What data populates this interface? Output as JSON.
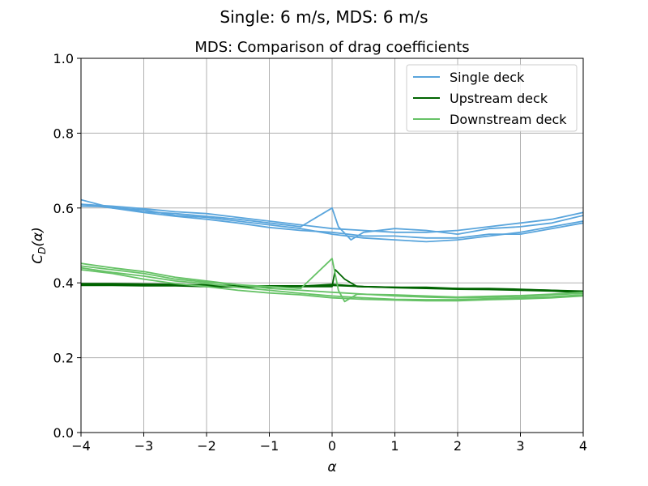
{
  "figure": {
    "suptitle": "Single: 6 m/s, MDS: 6 m/s"
  },
  "chart_data": {
    "type": "line",
    "title": "MDS: Comparison of drag coefficients",
    "xlabel": "α",
    "ylabel_main": "C",
    "ylabel_sub": "D",
    "ylabel_tail": "(α)",
    "xlim": [
      -4,
      4
    ],
    "ylim": [
      0,
      1
    ],
    "x_ticks": [
      -4,
      -3,
      -2,
      -1,
      0,
      1,
      2,
      3,
      4
    ],
    "y_ticks": [
      0.0,
      0.2,
      0.4,
      0.6,
      0.8,
      1.0
    ],
    "x_tick_labels": [
      "−4",
      "−3",
      "−2",
      "−1",
      "0",
      "1",
      "2",
      "3",
      "4"
    ],
    "y_tick_labels": [
      "0.0",
      "0.2",
      "0.4",
      "0.6",
      "0.8",
      "1.0"
    ],
    "grid": true,
    "legend_position": "top-right",
    "series": [
      {
        "name": "Single deck",
        "color": "#5aa5dc",
        "sweeps": [
          [
            [
              -4,
              0.61
            ],
            [
              -3.5,
              0.605
            ],
            [
              -3,
              0.598
            ],
            [
              -2.5,
              0.59
            ],
            [
              -2,
              0.585
            ],
            [
              -1.5,
              0.575
            ],
            [
              -1,
              0.565
            ],
            [
              -0.5,
              0.555
            ],
            [
              0,
              0.545
            ],
            [
              0.5,
              0.54
            ],
            [
              1,
              0.535
            ],
            [
              1.5,
              0.535
            ],
            [
              2,
              0.54
            ],
            [
              2.5,
              0.55
            ],
            [
              3,
              0.56
            ],
            [
              3.5,
              0.57
            ],
            [
              4,
              0.588
            ]
          ],
          [
            [
              -4,
              0.622
            ],
            [
              -3.5,
              0.6
            ],
            [
              -3,
              0.595
            ],
            [
              -2.5,
              0.58
            ],
            [
              -2,
              0.575
            ],
            [
              -1.5,
              0.565
            ],
            [
              -1,
              0.555
            ],
            [
              -0.5,
              0.545
            ],
            [
              0,
              0.53
            ],
            [
              0.5,
              0.52
            ],
            [
              1,
              0.515
            ],
            [
              1.5,
              0.51
            ],
            [
              2,
              0.515
            ],
            [
              2.5,
              0.525
            ],
            [
              3,
              0.535
            ],
            [
              3.5,
              0.55
            ],
            [
              4,
              0.565
            ]
          ],
          [
            [
              -4,
              0.605
            ],
            [
              -3.5,
              0.603
            ],
            [
              -3,
              0.59
            ],
            [
              -2.5,
              0.585
            ],
            [
              -2,
              0.578
            ],
            [
              -1.5,
              0.57
            ],
            [
              -1,
              0.56
            ],
            [
              -0.5,
              0.55
            ],
            [
              0,
              0.6
            ],
            [
              0.1,
              0.55
            ],
            [
              0.3,
              0.515
            ],
            [
              0.5,
              0.535
            ],
            [
              1,
              0.545
            ],
            [
              1.5,
              0.54
            ],
            [
              2,
              0.53
            ],
            [
              2.5,
              0.545
            ],
            [
              3,
              0.55
            ],
            [
              3.5,
              0.56
            ],
            [
              4,
              0.58
            ]
          ],
          [
            [
              -4,
              0.61
            ],
            [
              -3.5,
              0.6
            ],
            [
              -3,
              0.588
            ],
            [
              -2.5,
              0.578
            ],
            [
              -2,
              0.57
            ],
            [
              -1.5,
              0.56
            ],
            [
              -1,
              0.548
            ],
            [
              -0.5,
              0.54
            ],
            [
              0,
              0.535
            ],
            [
              0.5,
              0.525
            ],
            [
              1,
              0.525
            ],
            [
              1.5,
              0.52
            ],
            [
              2,
              0.52
            ],
            [
              2.5,
              0.53
            ],
            [
              3,
              0.53
            ],
            [
              3.5,
              0.545
            ],
            [
              4,
              0.56
            ]
          ]
        ]
      },
      {
        "name": "Upstream deck",
        "color": "#006400",
        "sweeps": [
          [
            [
              -4,
              0.395
            ],
            [
              -3.5,
              0.395
            ],
            [
              -3,
              0.395
            ],
            [
              -2.5,
              0.395
            ],
            [
              -2,
              0.395
            ],
            [
              -1.5,
              0.392
            ],
            [
              -1,
              0.39
            ],
            [
              -0.5,
              0.39
            ],
            [
              0,
              0.39
            ],
            [
              0.05,
              0.435
            ],
            [
              0.2,
              0.41
            ],
            [
              0.4,
              0.39
            ],
            [
              1,
              0.388
            ],
            [
              1.5,
              0.388
            ],
            [
              2,
              0.385
            ],
            [
              2.5,
              0.385
            ],
            [
              3,
              0.383
            ],
            [
              3.5,
              0.38
            ],
            [
              4,
              0.378
            ]
          ],
          [
            [
              -4,
              0.398
            ],
            [
              -3.5,
              0.398
            ],
            [
              -3,
              0.397
            ],
            [
              -2.5,
              0.396
            ],
            [
              -2,
              0.394
            ],
            [
              -1.5,
              0.392
            ],
            [
              -1,
              0.392
            ],
            [
              -0.5,
              0.392
            ],
            [
              0,
              0.393
            ],
            [
              0.5,
              0.39
            ],
            [
              1,
              0.388
            ],
            [
              1.5,
              0.386
            ],
            [
              2,
              0.385
            ],
            [
              2.5,
              0.383
            ],
            [
              3,
              0.382
            ],
            [
              3.5,
              0.38
            ],
            [
              4,
              0.376
            ]
          ],
          [
            [
              -4,
              0.393
            ],
            [
              -3.5,
              0.393
            ],
            [
              -3,
              0.392
            ],
            [
              -2.5,
              0.392
            ],
            [
              -2,
              0.39
            ],
            [
              -1.5,
              0.389
            ],
            [
              -1,
              0.389
            ],
            [
              -0.5,
              0.391
            ],
            [
              0,
              0.396
            ],
            [
              0.5,
              0.39
            ],
            [
              1,
              0.387
            ],
            [
              1.5,
              0.385
            ],
            [
              2,
              0.383
            ],
            [
              2.5,
              0.382
            ],
            [
              3,
              0.38
            ],
            [
              3.5,
              0.378
            ],
            [
              4,
              0.374
            ]
          ]
        ]
      },
      {
        "name": "Downstream deck",
        "color": "#66c266",
        "sweeps": [
          [
            [
              -4,
              0.445
            ],
            [
              -3.5,
              0.435
            ],
            [
              -3,
              0.425
            ],
            [
              -2.5,
              0.41
            ],
            [
              -2,
              0.402
            ],
            [
              -1.5,
              0.395
            ],
            [
              -1,
              0.385
            ],
            [
              -0.5,
              0.38
            ],
            [
              0,
              0.375
            ],
            [
              0.5,
              0.37
            ],
            [
              1,
              0.365
            ],
            [
              1.5,
              0.362
            ],
            [
              2,
              0.36
            ],
            [
              2.5,
              0.362
            ],
            [
              3,
              0.364
            ],
            [
              3.5,
              0.368
            ],
            [
              4,
              0.372
            ]
          ],
          [
            [
              -4,
              0.452
            ],
            [
              -3.5,
              0.44
            ],
            [
              -3,
              0.43
            ],
            [
              -2.5,
              0.415
            ],
            [
              -2,
              0.405
            ],
            [
              -1.5,
              0.395
            ],
            [
              -1,
              0.39
            ],
            [
              -0.5,
              0.385
            ],
            [
              0,
              0.465
            ],
            [
              0.1,
              0.38
            ],
            [
              0.2,
              0.35
            ],
            [
              0.4,
              0.37
            ],
            [
              1,
              0.368
            ],
            [
              1.5,
              0.365
            ],
            [
              2,
              0.362
            ],
            [
              2.5,
              0.364
            ],
            [
              3,
              0.366
            ],
            [
              3.5,
              0.37
            ],
            [
              4,
              0.375
            ]
          ],
          [
            [
              -4,
              0.44
            ],
            [
              -3.5,
              0.428
            ],
            [
              -3,
              0.418
            ],
            [
              -2.5,
              0.405
            ],
            [
              -2,
              0.398
            ],
            [
              -1.5,
              0.388
            ],
            [
              -1,
              0.38
            ],
            [
              -0.5,
              0.372
            ],
            [
              0,
              0.365
            ],
            [
              0.5,
              0.36
            ],
            [
              1,
              0.356
            ],
            [
              1.5,
              0.355
            ],
            [
              2,
              0.355
            ],
            [
              2.5,
              0.358
            ],
            [
              3,
              0.36
            ],
            [
              3.5,
              0.363
            ],
            [
              4,
              0.368
            ]
          ],
          [
            [
              -4,
              0.435
            ],
            [
              -3.5,
              0.425
            ],
            [
              -3,
              0.41
            ],
            [
              -2.5,
              0.398
            ],
            [
              -2,
              0.39
            ],
            [
              -1.5,
              0.38
            ],
            [
              -1,
              0.373
            ],
            [
              -0.5,
              0.368
            ],
            [
              0,
              0.36
            ],
            [
              0.5,
              0.356
            ],
            [
              1,
              0.354
            ],
            [
              1.5,
              0.352
            ],
            [
              2,
              0.352
            ],
            [
              2.5,
              0.355
            ],
            [
              3,
              0.357
            ],
            [
              3.5,
              0.36
            ],
            [
              4,
              0.365
            ]
          ]
        ]
      }
    ]
  }
}
